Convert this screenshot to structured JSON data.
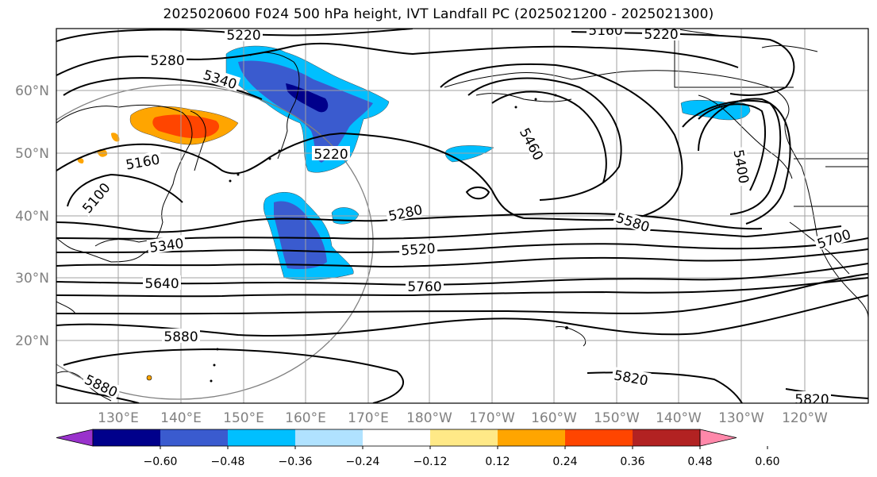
{
  "title": "2025020600 F024 500 hPa height, IVT Landfall PC (2025021200 - 2025021300)",
  "map": {
    "lat_labels": [
      "60°N",
      "50°N",
      "40°N",
      "30°N",
      "20°N"
    ],
    "lon_labels": [
      "130°E",
      "140°E",
      "150°E",
      "160°E",
      "170°E",
      "180°W",
      "170°W",
      "160°W",
      "150°W",
      "140°W",
      "130°W",
      "120°W"
    ],
    "contour_labels": [
      "5220",
      "5160",
      "5220",
      "5280",
      "5340",
      "5460",
      "5160",
      "5220",
      "5100",
      "5280",
      "5400",
      "5340",
      "5520",
      "5580",
      "5640",
      "5760",
      "5700",
      "5880",
      "5880",
      "5820",
      "5820"
    ]
  },
  "colorbar": {
    "tick_labels": [
      "−0.60",
      "−0.48",
      "−0.36",
      "−0.24",
      "−0.12",
      "0.12",
      "0.24",
      "0.36",
      "0.48",
      "0.60"
    ],
    "colors": [
      "#9932cc",
      "#00008b",
      "#3a5bcf",
      "#00bfff",
      "#b0e2ff",
      "#ffffff",
      "#ffe987",
      "#ffa500",
      "#ff4500",
      "#b22222",
      "#ff88aa"
    ]
  }
}
